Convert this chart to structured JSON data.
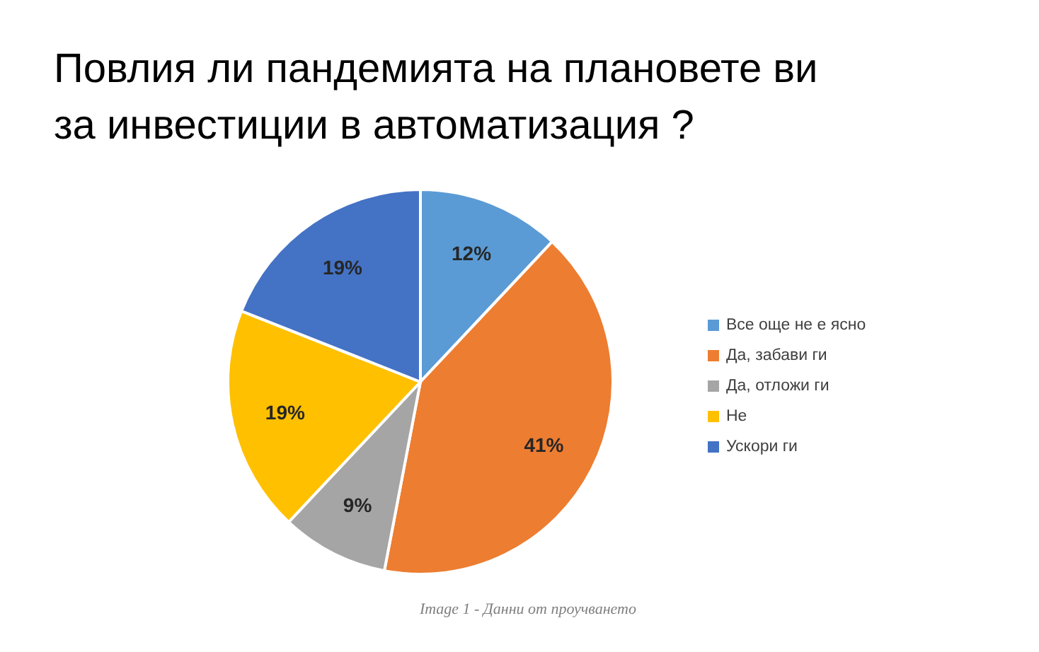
{
  "chart_data": {
    "type": "pie",
    "title": "Повлия ли пандемията на плановете ви за инвестиции в автоматизация ?",
    "categories": [
      "Все още не е ясно",
      "Да, забави ги",
      "Да, отложи ги",
      "Не",
      "Ускори ги"
    ],
    "values": [
      12,
      41,
      9,
      19,
      19
    ],
    "colors": [
      "#5b9bd5",
      "#ed7d31",
      "#a5a5a5",
      "#ffc000",
      "#4472c4"
    ],
    "value_labels": [
      "12%",
      "41%",
      "9%",
      "19%",
      "19%"
    ],
    "legend": "right",
    "annotations": [
      "Image 1 - Данни от проучването"
    ]
  }
}
